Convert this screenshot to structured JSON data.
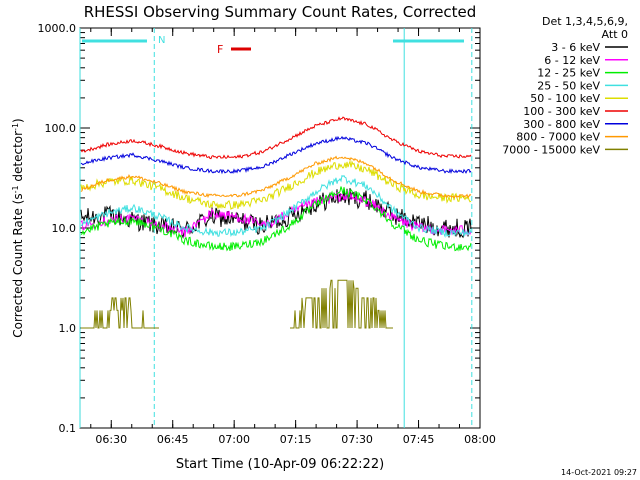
{
  "chart_data": {
    "type": "line",
    "title": "RHESSI Observing Summary Count Rates, Corrected",
    "xlabel": "Start Time (10-Apr-09 06:22:22)",
    "ylabel_main": "Corrected Count Rate (s",
    "ylabel_sup1": "-1",
    "ylabel_mid": " detector",
    "ylabel_sup2": "-1",
    "ylabel_end": ")",
    "y_scale": "log",
    "ylim": [
      0.1,
      1000
    ],
    "xlim_minutes": [
      6.33,
      8.0
    ],
    "x_tick_labels": [
      "06:30",
      "06:45",
      "07:00",
      "07:15",
      "07:30",
      "07:45",
      "08:00"
    ],
    "y_tick_labels": [
      "0.1",
      "1.0",
      "10.0",
      "100.0",
      "1000.0"
    ],
    "grid": false,
    "legend_position": "top-right",
    "legend_header": [
      "Det 1,3,4,5,6,9,",
      "Att 0"
    ],
    "footer_timestamp": "14-Oct-2021 09:27",
    "annotations": {
      "night_marker": "N",
      "flare_marker": "F",
      "flag_color_night": "#40e0e0",
      "flag_color_flare": "#dd0000"
    },
    "vertical_markers_time": [
      "06:22:22",
      "06:40:30",
      "07:41:30",
      "07:58:00"
    ],
    "series": [
      {
        "name": "3 - 6 keV",
        "color": "#000000",
        "values": [
          12.5,
          13.5,
          12.0,
          10.5,
          9.5,
          13.0,
          12.0,
          10.5,
          13.0,
          17.5,
          21.0,
          19.0,
          13.5,
          11.0,
          10.0,
          10.0
        ]
      },
      {
        "name": "6 - 12 keV",
        "color": "#ff00ff",
        "values": [
          10.5,
          12.0,
          12.5,
          10.5,
          9.0,
          14.0,
          13.0,
          10.5,
          14.0,
          18.0,
          21.0,
          18.5,
          12.5,
          10.0,
          9.5,
          9.5
        ]
      },
      {
        "name": "12 - 25 keV",
        "color": "#00ee00",
        "values": [
          9.0,
          11.0,
          12.0,
          10.0,
          7.5,
          6.5,
          6.5,
          7.5,
          10.5,
          17.0,
          24.0,
          19.0,
          11.0,
          7.5,
          6.5,
          6.5
        ]
      },
      {
        "name": "25 - 50 keV",
        "color": "#40e0e0",
        "values": [
          11.0,
          14.0,
          16.0,
          13.0,
          10.0,
          9.0,
          9.0,
          10.0,
          14.5,
          23.0,
          32.0,
          26.0,
          15.0,
          10.0,
          9.0,
          9.0
        ]
      },
      {
        "name": "50 - 100 keV",
        "color": "#dddd00",
        "values": [
          25.0,
          29.0,
          30.0,
          25.0,
          20.0,
          17.0,
          17.0,
          19.0,
          26.0,
          36.0,
          44.0,
          38.0,
          27.0,
          21.0,
          20.0,
          20.0
        ]
      },
      {
        "name": "100 - 300 keV",
        "color": "#ee0000",
        "values": [
          58.0,
          68.0,
          75.0,
          66.0,
          56.0,
          51.0,
          51.0,
          58.0,
          78.0,
          105.0,
          125.0,
          108.0,
          75.0,
          58.0,
          52.0,
          52.0
        ]
      },
      {
        "name": "300 - 800 keV",
        "color": "#0000dd",
        "values": [
          44.0,
          50.0,
          54.0,
          47.0,
          40.0,
          37.0,
          37.0,
          41.0,
          54.0,
          70.0,
          80.0,
          70.0,
          50.0,
          40.0,
          37.0,
          37.0
        ]
      },
      {
        "name": "800 - 7000 keV",
        "color": "#ff9900",
        "values": [
          24.0,
          30.0,
          33.0,
          28.0,
          23.0,
          21.0,
          21.0,
          24.0,
          32.0,
          44.0,
          52.0,
          44.0,
          30.0,
          23.0,
          21.0,
          21.0
        ]
      },
      {
        "name": "7000 - 15000 keV",
        "color": "#808000",
        "values": [
          1.0,
          1.5,
          1.5,
          0.9,
          null,
          null,
          null,
          null,
          1.1,
          2.0,
          3.0,
          2.0,
          1.0,
          null,
          null,
          null
        ]
      }
    ]
  }
}
